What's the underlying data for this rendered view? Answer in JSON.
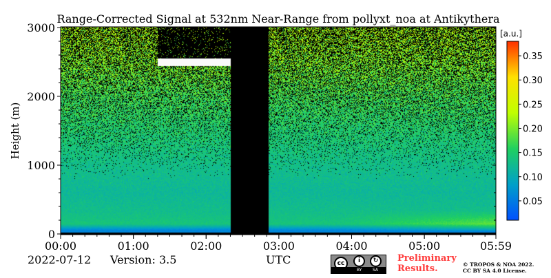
{
  "chart_data": {
    "type": "heatmap",
    "title": "Range-Corrected Signal at 532nm Near-Range from pollyxt_noa at Antikythera",
    "xlabel": "UTC",
    "ylabel": "Height (m)",
    "xlim": [
      "00:00",
      "05:59"
    ],
    "ylim": [
      0,
      3000
    ],
    "x_ticks": [
      "00:00",
      "01:00",
      "02:00",
      "03:00",
      "04:00",
      "05:00",
      "05:59"
    ],
    "x_tick_minutes": [
      0,
      60,
      120,
      180,
      240,
      300,
      359
    ],
    "y_ticks": [
      0,
      1000,
      2000,
      3000
    ],
    "colorbar": {
      "label": "[a.u.]",
      "range": [
        0.01,
        0.38
      ],
      "ticks": [
        0.05,
        0.1,
        0.15,
        0.2,
        0.25,
        0.3,
        0.35
      ],
      "tick_labels": [
        "0.05",
        "0.10",
        "0.15",
        "0.20",
        "0.25",
        "0.30",
        "0.35"
      ],
      "colormap": "jet",
      "colors": [
        "#0050ff",
        "#00a0c8",
        "#20d060",
        "#c0ff00",
        "#ffe000",
        "#ff3000"
      ]
    },
    "gaps": [
      {
        "start_minutes": 140,
        "end_minutes": 171,
        "note": "no data"
      }
    ],
    "cloud_layers": [
      {
        "start_minutes": 80,
        "end_minutes": 140,
        "base_m": 2450,
        "top_m": 2550
      }
    ],
    "profile_signal": [
      {
        "height_m": 60,
        "value": 0.06
      },
      {
        "height_m": 150,
        "value": 0.14
      },
      {
        "height_m": 300,
        "value": 0.13
      },
      {
        "height_m": 600,
        "value": 0.12
      },
      {
        "height_m": 1000,
        "value": 0.13
      },
      {
        "height_m": 1500,
        "value": 0.15
      },
      {
        "height_m": 2000,
        "value": 0.17
      },
      {
        "height_m": 2500,
        "value": 0.2
      },
      {
        "height_m": 3000,
        "value": 0.22
      }
    ],
    "grid": false
  },
  "footer": {
    "date": "2022-07-12",
    "version": "Version: 3.5",
    "xlabel": "UTC",
    "cc_words": [
      "BY",
      "SA"
    ],
    "preliminary_line1": "Preliminary",
    "preliminary_line2": "Results.",
    "copyright_line1": "© TROPOS & NOA 2022.",
    "copyright_line2": "CC BY SA 4.0 License.",
    "preliminary_color": "#ff3c3c"
  }
}
